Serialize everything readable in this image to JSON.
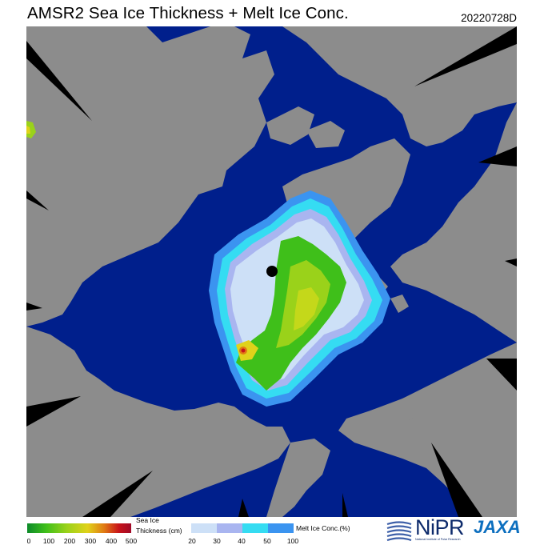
{
  "header": {
    "title": "AMSR2 Sea Ice Thickness + Melt Ice Conc.",
    "date": "20220728D"
  },
  "colors": {
    "ocean": "#001f8c",
    "land": "#8c8c8c",
    "no_data": "#000000",
    "pole_hole": "#000000"
  },
  "legend": {
    "thickness": {
      "label_line1": "Sea Ice",
      "label_line2": "Thickness (cm)",
      "ticks": [
        "0",
        "100",
        "200",
        "300",
        "400",
        "500"
      ],
      "colors": [
        "#0d8a2a",
        "#3fbf1a",
        "#9ad21a",
        "#e0d21a",
        "#e07a14",
        "#c8141a",
        "#a00a28"
      ]
    },
    "melt_conc": {
      "label": "Melt Ice Conc.(%)",
      "ticks": [
        "20",
        "30",
        "40",
        "50",
        "100"
      ],
      "colors": [
        "#cde0f7",
        "#a9b5f0",
        "#35dcf2",
        "#3b94f0"
      ]
    }
  },
  "logos": {
    "nipr": "NiPR",
    "nipr_sub": "National Institute of Polar Research",
    "jaxa": "JAXA"
  }
}
